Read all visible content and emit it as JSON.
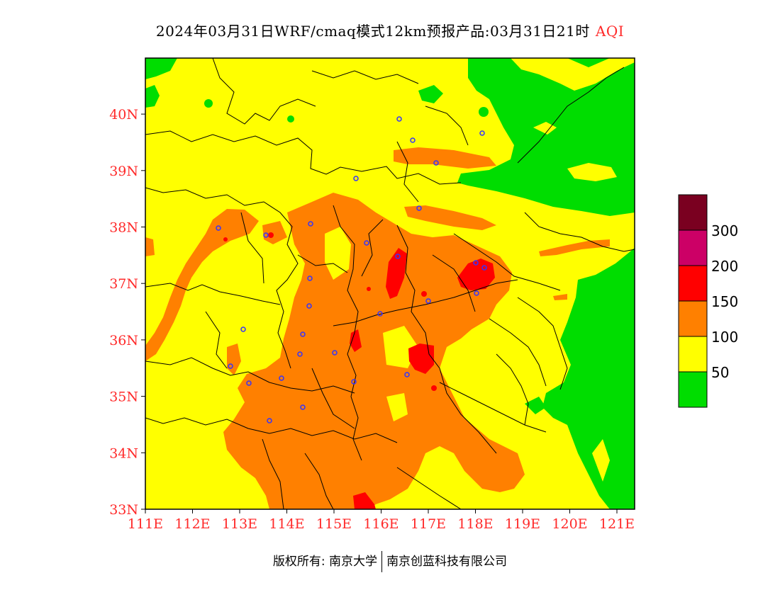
{
  "title": {
    "main": "2024年03月31日WRF/cmaq模式12km预报产品:03月31日21时",
    "variable": "AQI"
  },
  "colors": {
    "axis_label": "#ff2a2a",
    "good": "#00dd00",
    "moderate": "#ffff00",
    "usg": "#ff8000",
    "unhealthy": "#ff0000",
    "very_unhealthy": "#cc0066",
    "hazardous": "#7a0020",
    "station_marker": "#3333ff"
  },
  "axes": {
    "lon_ticks": [
      "111E",
      "112E",
      "113E",
      "114E",
      "115E",
      "116E",
      "117E",
      "118E",
      "119E",
      "120E",
      "121E"
    ],
    "lat_ticks": [
      "33N",
      "34N",
      "35N",
      "36N",
      "37N",
      "38N",
      "39N",
      "40N"
    ]
  },
  "legend": {
    "labels": [
      "50",
      "100",
      "150",
      "200",
      "300"
    ],
    "bins": [
      {
        "color": "#00dd00"
      },
      {
        "color": "#ffff00"
      },
      {
        "color": "#ff8000"
      },
      {
        "color": "#ff0000"
      },
      {
        "color": "#cc0066"
      },
      {
        "color": "#7a0020"
      }
    ]
  },
  "footer": {
    "copyright": "版权所有: 南京大学",
    "company": "南京创蓝科技有限公司"
  }
}
